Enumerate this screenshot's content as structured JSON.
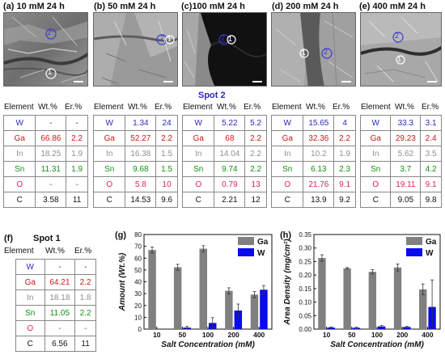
{
  "panels_top": [
    {
      "label": "(a) 10 mM 24 h",
      "spot2": "2",
      "spot1": "1",
      "header": {
        "element": "Element",
        "wt": "Wt.%",
        "er": "Er.%"
      },
      "rows": [
        {
          "el": "W",
          "wt": "-",
          "er": "-"
        },
        {
          "el": "Ga",
          "wt": "66.86",
          "er": "2.2"
        },
        {
          "el": "In",
          "wt": "18.25",
          "er": "1.9"
        },
        {
          "el": "Sn",
          "wt": "11.31",
          "er": "1.9"
        },
        {
          "el": "O",
          "wt": "-",
          "er": "-"
        },
        {
          "el": "C",
          "wt": "3.58",
          "er": "11"
        }
      ]
    },
    {
      "label": "(b) 50 mM 24 h",
      "spot2": "2",
      "spot1": "1",
      "header": {
        "element": "Element",
        "wt": "Wt.%",
        "er": "Er.%"
      },
      "rows": [
        {
          "el": "W",
          "wt": "1.34",
          "er": "24"
        },
        {
          "el": "Ga",
          "wt": "52.27",
          "er": "2.2"
        },
        {
          "el": "In",
          "wt": "16.38",
          "er": "1.5"
        },
        {
          "el": "Sn",
          "wt": "9.68",
          "er": "1.5"
        },
        {
          "el": "O",
          "wt": "5.8",
          "er": "10"
        },
        {
          "el": "C",
          "wt": "14.53",
          "er": "9.6"
        }
      ]
    },
    {
      "label": "(c)100 mM 24 h",
      "spot2": "2",
      "spot1": "1",
      "header": {
        "element": "Element",
        "wt": "Wt.%",
        "er": "Er.%"
      },
      "rows": [
        {
          "el": "W",
          "wt": "5.22",
          "er": "5.2"
        },
        {
          "el": "Ga",
          "wt": "68",
          "er": "2.2"
        },
        {
          "el": "In",
          "wt": "14.04",
          "er": "2.2"
        },
        {
          "el": "Sn",
          "wt": "9.74",
          "er": "2.2"
        },
        {
          "el": "O",
          "wt": "0.79",
          "er": "13"
        },
        {
          "el": "C",
          "wt": "2.21",
          "er": "12"
        }
      ]
    },
    {
      "label": "(d) 200 mM 24 h",
      "spot2": "2",
      "spot1": "1",
      "header": {
        "element": "Element",
        "wt": "Wt.%",
        "er": "Er.%"
      },
      "rows": [
        {
          "el": "W",
          "wt": "15.65",
          "er": "4"
        },
        {
          "el": "Ga",
          "wt": "32.36",
          "er": "2.2"
        },
        {
          "el": "In",
          "wt": "10.2",
          "er": "1.9"
        },
        {
          "el": "Sn",
          "wt": "6.13",
          "er": "2.3"
        },
        {
          "el": "O",
          "wt": "21.76",
          "er": "9.1"
        },
        {
          "el": "C",
          "wt": "13.9",
          "er": "9.2"
        }
      ]
    },
    {
      "label": "(e) 400 mM 24 h",
      "spot2": "2",
      "spot1": "1",
      "header": {
        "element": "Element",
        "wt": "Wt.%",
        "er": "Er.%"
      },
      "rows": [
        {
          "el": "W",
          "wt": "33.3",
          "er": "3.1"
        },
        {
          "el": "Ga",
          "wt": "29.23",
          "er": "2.4"
        },
        {
          "el": "In",
          "wt": "5.62",
          "er": "3.5"
        },
        {
          "el": "Sn",
          "wt": "3.7",
          "er": "4.2"
        },
        {
          "el": "O",
          "wt": "19.11",
          "er": "9.1"
        },
        {
          "el": "C",
          "wt": "9.05",
          "er": "9.8"
        }
      ]
    }
  ],
  "spot2_title": "Spot 2",
  "panel_f": {
    "label": "(f)",
    "title": "Spot 1",
    "header": {
      "element": "Element",
      "wt": "Wt.%",
      "er": "Er.%"
    },
    "rows": [
      {
        "el": "W",
        "wt": "-",
        "er": "-"
      },
      {
        "el": "Ga",
        "wt": "64.21",
        "er": "2.2"
      },
      {
        "el": "In",
        "wt": "18.18",
        "er": "1.8"
      },
      {
        "el": "Sn",
        "wt": "11.05",
        "er": "2.2"
      },
      {
        "el": "O",
        "wt": "-",
        "er": "-"
      },
      {
        "el": "C",
        "wt": "6.56",
        "er": "11"
      }
    ]
  },
  "colors": {
    "W": "#2b2bb0",
    "Ga": "#d01818",
    "In": "#909090",
    "Sn": "#129012",
    "O": "#e02060",
    "C": "#111111",
    "bar_ga": "#808080",
    "bar_w": "#0a0aee"
  },
  "chart_data": [
    {
      "panel_label": "(g)",
      "type": "bar",
      "categories": [
        "10",
        "50",
        "100",
        "200",
        "400"
      ],
      "series": [
        {
          "name": "Ga",
          "values": [
            66.9,
            52.3,
            68.0,
            32.4,
            29.2
          ],
          "errors": [
            2.5,
            2.5,
            2.5,
            2.5,
            2.5
          ]
        },
        {
          "name": "W",
          "values": [
            0.0,
            1.3,
            5.2,
            15.7,
            33.3
          ],
          "errors": [
            0.0,
            1.0,
            4.5,
            5.5,
            3.5
          ]
        }
      ],
      "xlabel": "Salt Concentration (mM)",
      "ylabel": "Amount (Wt.%)",
      "ylim": [
        0,
        80
      ],
      "yticks": [
        "0",
        "10",
        "20",
        "30",
        "40",
        "50",
        "60",
        "70",
        "80"
      ],
      "legend": "top-right",
      "grid": false
    },
    {
      "panel_label": "(h)",
      "type": "bar",
      "categories": [
        "10",
        "50",
        "100",
        "200",
        "400"
      ],
      "series": [
        {
          "name": "Ga",
          "values": [
            0.263,
            0.225,
            0.212,
            0.228,
            0.147
          ],
          "errors": [
            0.012,
            0.003,
            0.008,
            0.013,
            0.02
          ]
        },
        {
          "name": "W",
          "values": [
            0.006,
            0.005,
            0.01,
            0.008,
            0.082
          ],
          "errors": [
            0.002,
            0.002,
            0.003,
            0.002,
            0.1
          ]
        }
      ],
      "xlabel": "Salt Concentration (mM)",
      "ylabel": "Area Density (mg/cm²)",
      "ylim": [
        0,
        0.35
      ],
      "yticks": [
        "0.00",
        "0.05",
        "0.10",
        "0.15",
        "0.20",
        "0.25",
        "0.30",
        "0.35"
      ],
      "legend": "top-right",
      "grid": false
    }
  ]
}
